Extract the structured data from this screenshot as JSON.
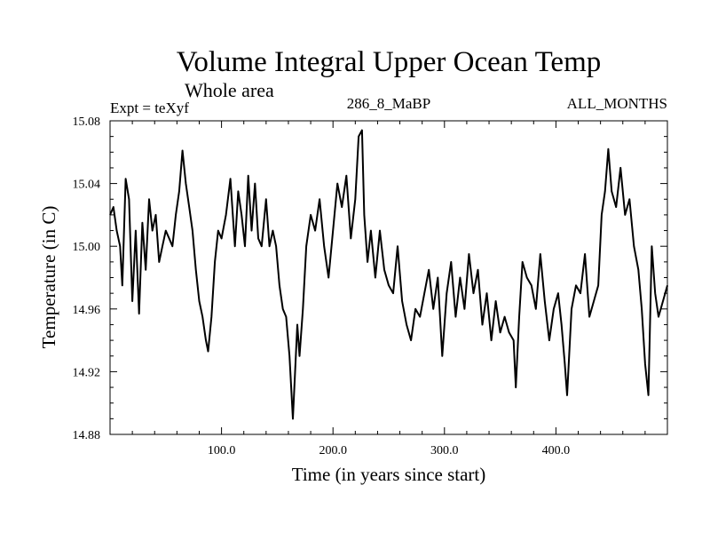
{
  "chart_data": {
    "type": "line",
    "title": "Volume Integral Upper Ocean Temp",
    "subtitle": "Whole area",
    "annotations": {
      "left": "Expt = teXyf",
      "center": "286_8_MaBP",
      "right": "ALL_MONTHS"
    },
    "xlabel": "Time (in years since start)",
    "ylabel": "Temperature (in C)",
    "xlim": [
      0,
      500
    ],
    "ylim": [
      14.88,
      15.08
    ],
    "x_ticks": [
      {
        "value": 100,
        "label": "100.0"
      },
      {
        "value": 200,
        "label": "200.0"
      },
      {
        "value": 300,
        "label": "300.0"
      },
      {
        "value": 400,
        "label": "400.0"
      }
    ],
    "y_ticks": [
      {
        "value": 14.88,
        "label": "14.88"
      },
      {
        "value": 14.92,
        "label": "14.92"
      },
      {
        "value": 14.96,
        "label": "14.96"
      },
      {
        "value": 15.0,
        "label": "15.00"
      },
      {
        "value": 15.04,
        "label": "15.04"
      },
      {
        "value": 15.08,
        "label": "15.08"
      }
    ],
    "grid": false,
    "line_color": "#000000",
    "x": [
      0,
      3,
      6,
      9,
      11,
      14,
      17,
      20,
      23,
      26,
      29,
      32,
      35,
      38,
      41,
      44,
      47,
      50,
      53,
      56,
      59,
      62,
      65,
      68,
      71,
      74,
      77,
      80,
      83,
      86,
      88,
      91,
      94,
      97,
      100,
      104,
      108,
      112,
      115,
      118,
      121,
      124,
      127,
      130,
      133,
      136,
      140,
      143,
      146,
      149,
      152,
      155,
      158,
      161,
      164,
      166,
      168,
      170,
      173,
      176,
      180,
      184,
      188,
      192,
      196,
      200,
      204,
      208,
      212,
      216,
      220,
      223,
      226,
      228,
      231,
      234,
      238,
      242,
      246,
      250,
      254,
      258,
      262,
      266,
      270,
      274,
      278,
      282,
      286,
      290,
      294,
      298,
      302,
      306,
      310,
      314,
      318,
      322,
      326,
      330,
      334,
      338,
      342,
      346,
      350,
      354,
      358,
      362,
      364,
      367,
      370,
      374,
      378,
      382,
      386,
      390,
      394,
      398,
      402,
      405,
      408,
      410,
      414,
      418,
      422,
      426,
      430,
      434,
      438,
      441,
      444,
      447,
      450,
      454,
      458,
      462,
      466,
      470,
      474,
      477,
      480,
      483,
      486,
      489,
      492,
      496,
      500
    ],
    "y": [
      15.02,
      15.025,
      15.01,
      15.0,
      14.975,
      15.043,
      15.03,
      14.965,
      15.01,
      14.957,
      15.015,
      14.985,
      15.03,
      15.01,
      15.02,
      14.99,
      15.0,
      15.01,
      15.005,
      15.0,
      15.02,
      15.035,
      15.061,
      15.04,
      15.025,
      15.01,
      14.985,
      14.965,
      14.955,
      14.94,
      14.933,
      14.955,
      14.99,
      15.01,
      15.005,
      15.02,
      15.043,
      15.0,
      15.035,
      15.02,
      15.0,
      15.045,
      15.01,
      15.04,
      15.005,
      15.0,
      15.03,
      15.0,
      15.01,
      15.0,
      14.975,
      14.96,
      14.955,
      14.93,
      14.89,
      14.92,
      14.95,
      14.93,
      14.96,
      15.0,
      15.02,
      15.01,
      15.03,
      15.0,
      14.98,
      15.01,
      15.04,
      15.025,
      15.045,
      15.005,
      15.03,
      15.07,
      15.074,
      15.02,
      14.99,
      15.01,
      14.98,
      15.01,
      14.985,
      14.975,
      14.97,
      15.0,
      14.965,
      14.95,
      14.94,
      14.96,
      14.955,
      14.97,
      14.985,
      14.96,
      14.98,
      14.93,
      14.97,
      14.99,
      14.955,
      14.98,
      14.96,
      14.995,
      14.97,
      14.985,
      14.95,
      14.97,
      14.94,
      14.965,
      14.945,
      14.955,
      14.945,
      14.94,
      14.91,
      14.955,
      14.99,
      14.98,
      14.975,
      14.96,
      14.995,
      14.965,
      14.94,
      14.96,
      14.97,
      14.95,
      14.925,
      14.905,
      14.96,
      14.975,
      14.97,
      14.995,
      14.955,
      14.965,
      14.975,
      15.02,
      15.035,
      15.062,
      15.035,
      15.025,
      15.05,
      15.02,
      15.03,
      15.0,
      14.985,
      14.96,
      14.925,
      14.905,
      15.0,
      14.97,
      14.955,
      14.965,
      14.975
    ]
  }
}
